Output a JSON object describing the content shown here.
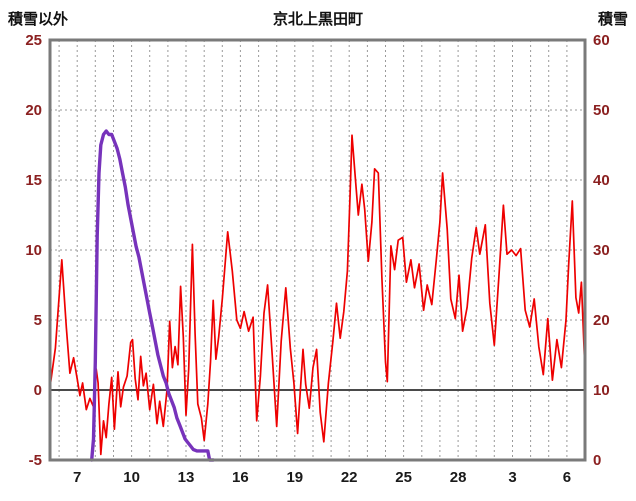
{
  "title": "京北上黒田町",
  "left_axis_title": "積雪以外",
  "right_axis_title": "積雪",
  "colors": {
    "red_series": "#ee0000",
    "purple_series": "#7733bb",
    "grid": "#9a9a9a",
    "frame": "#7a7a7a",
    "zero_line": "#4a4a4a",
    "y_tick_label": "#8b2020",
    "x_tick_label": "#1a1a1a",
    "title_color": "#111111"
  },
  "chart_data": {
    "type": "line",
    "title": "京北上黒田町",
    "x_domain": [
      5.5,
      35.0
    ],
    "x_ticks": [
      {
        "day": 7,
        "label": "7"
      },
      {
        "day": 10,
        "label": "10"
      },
      {
        "day": 13,
        "label": "13"
      },
      {
        "day": 16,
        "label": "16"
      },
      {
        "day": 19,
        "label": "19"
      },
      {
        "day": 22,
        "label": "22"
      },
      {
        "day": 25,
        "label": "25"
      },
      {
        "day": 28,
        "label": "28"
      },
      {
        "day": 31,
        "label": "3"
      },
      {
        "day": 34,
        "label": "6"
      }
    ],
    "grid": {
      "vertical_every_day": 1,
      "style": "dashed"
    },
    "left_axis": {
      "label": "積雪以外",
      "min": -5,
      "max": 25,
      "ticks": [
        -5,
        0,
        5,
        10,
        15,
        20,
        25
      ]
    },
    "right_axis": {
      "label": "積雪",
      "min": 0,
      "max": 60,
      "ticks": [
        0,
        10,
        20,
        30,
        40,
        50,
        60
      ]
    },
    "series": [
      {
        "name": "積雪以外",
        "axis": "left",
        "color": "#ee0000",
        "width": 1.7,
        "points": [
          [
            5.5,
            0.2
          ],
          [
            5.8,
            3.0
          ],
          [
            6.15,
            9.3
          ],
          [
            6.4,
            4.5
          ],
          [
            6.6,
            1.2
          ],
          [
            6.8,
            2.3
          ],
          [
            7.0,
            0.8
          ],
          [
            7.15,
            -0.4
          ],
          [
            7.3,
            0.5
          ],
          [
            7.5,
            -1.4
          ],
          [
            7.7,
            -0.6
          ],
          [
            7.9,
            -1.2
          ],
          [
            8.05,
            1.5
          ],
          [
            8.15,
            0.5
          ],
          [
            8.3,
            -4.6
          ],
          [
            8.45,
            -2.2
          ],
          [
            8.6,
            -3.4
          ],
          [
            8.75,
            -1.0
          ],
          [
            8.9,
            0.9
          ],
          [
            9.05,
            -2.8
          ],
          [
            9.25,
            1.3
          ],
          [
            9.4,
            -1.2
          ],
          [
            9.55,
            0.2
          ],
          [
            9.75,
            1.0
          ],
          [
            9.95,
            3.4
          ],
          [
            10.05,
            3.6
          ],
          [
            10.2,
            0.8
          ],
          [
            10.35,
            -0.7
          ],
          [
            10.5,
            2.4
          ],
          [
            10.65,
            0.3
          ],
          [
            10.8,
            1.2
          ],
          [
            11.0,
            -1.4
          ],
          [
            11.2,
            0.4
          ],
          [
            11.4,
            -2.4
          ],
          [
            11.55,
            -0.8
          ],
          [
            11.75,
            -2.6
          ],
          [
            11.95,
            0.0
          ],
          [
            12.1,
            4.9
          ],
          [
            12.25,
            1.6
          ],
          [
            12.4,
            3.1
          ],
          [
            12.55,
            1.8
          ],
          [
            12.7,
            7.4
          ],
          [
            12.85,
            3.8
          ],
          [
            13.0,
            -1.8
          ],
          [
            13.15,
            1.5
          ],
          [
            13.35,
            10.4
          ],
          [
            13.5,
            4.0
          ],
          [
            13.65,
            -1.0
          ],
          [
            13.85,
            -2.0
          ],
          [
            14.0,
            -3.6
          ],
          [
            14.2,
            -1.0
          ],
          [
            14.35,
            2.0
          ],
          [
            14.5,
            6.4
          ],
          [
            14.65,
            2.2
          ],
          [
            14.8,
            3.8
          ],
          [
            15.0,
            6.5
          ],
          [
            15.3,
            11.3
          ],
          [
            15.55,
            8.5
          ],
          [
            15.8,
            5.0
          ],
          [
            16.0,
            4.4
          ],
          [
            16.2,
            5.6
          ],
          [
            16.45,
            4.2
          ],
          [
            16.7,
            5.2
          ],
          [
            16.9,
            -2.2
          ],
          [
            17.1,
            1.0
          ],
          [
            17.3,
            5.5
          ],
          [
            17.5,
            7.5
          ],
          [
            17.75,
            2.5
          ],
          [
            18.0,
            -2.6
          ],
          [
            18.25,
            3.5
          ],
          [
            18.5,
            7.3
          ],
          [
            18.75,
            3.0
          ],
          [
            18.95,
            0.5
          ],
          [
            19.15,
            -3.1
          ],
          [
            19.45,
            2.9
          ],
          [
            19.6,
            0.4
          ],
          [
            19.8,
            -1.3
          ],
          [
            20.0,
            1.6
          ],
          [
            20.2,
            2.9
          ],
          [
            20.4,
            -1.6
          ],
          [
            20.6,
            -3.7
          ],
          [
            20.85,
            0.5
          ],
          [
            21.1,
            3.5
          ],
          [
            21.3,
            6.2
          ],
          [
            21.5,
            3.7
          ],
          [
            21.7,
            5.6
          ],
          [
            21.9,
            8.5
          ],
          [
            22.05,
            14.0
          ],
          [
            22.15,
            18.2
          ],
          [
            22.35,
            14.9
          ],
          [
            22.5,
            12.5
          ],
          [
            22.7,
            14.7
          ],
          [
            22.85,
            12.9
          ],
          [
            23.05,
            9.2
          ],
          [
            23.25,
            12.0
          ],
          [
            23.4,
            15.8
          ],
          [
            23.6,
            15.5
          ],
          [
            23.8,
            8.0
          ],
          [
            24.0,
            2.0
          ],
          [
            24.1,
            0.6
          ],
          [
            24.3,
            10.3
          ],
          [
            24.5,
            8.6
          ],
          [
            24.7,
            10.7
          ],
          [
            24.95,
            10.9
          ],
          [
            25.15,
            7.7
          ],
          [
            25.4,
            9.3
          ],
          [
            25.6,
            7.3
          ],
          [
            25.85,
            9.0
          ],
          [
            26.1,
            5.7
          ],
          [
            26.3,
            7.5
          ],
          [
            26.55,
            6.1
          ],
          [
            26.8,
            9.3
          ],
          [
            27.0,
            12.0
          ],
          [
            27.15,
            15.5
          ],
          [
            27.4,
            11.5
          ],
          [
            27.6,
            6.5
          ],
          [
            27.85,
            5.1
          ],
          [
            28.05,
            8.2
          ],
          [
            28.25,
            4.2
          ],
          [
            28.5,
            5.9
          ],
          [
            28.75,
            9.4
          ],
          [
            29.0,
            11.6
          ],
          [
            29.2,
            9.7
          ],
          [
            29.5,
            11.8
          ],
          [
            29.75,
            6.2
          ],
          [
            30.0,
            3.2
          ],
          [
            30.25,
            8.1
          ],
          [
            30.5,
            13.2
          ],
          [
            30.7,
            9.7
          ],
          [
            30.95,
            10.0
          ],
          [
            31.2,
            9.6
          ],
          [
            31.45,
            10.1
          ],
          [
            31.7,
            5.7
          ],
          [
            31.95,
            4.5
          ],
          [
            32.2,
            6.5
          ],
          [
            32.45,
            3.1
          ],
          [
            32.7,
            1.1
          ],
          [
            32.95,
            5.1
          ],
          [
            33.2,
            0.7
          ],
          [
            33.45,
            3.6
          ],
          [
            33.7,
            1.6
          ],
          [
            33.95,
            5.0
          ],
          [
            34.1,
            9.0
          ],
          [
            34.3,
            13.5
          ],
          [
            34.5,
            6.6
          ],
          [
            34.65,
            5.5
          ],
          [
            34.8,
            7.7
          ],
          [
            35.0,
            1.3
          ]
        ]
      },
      {
        "name": "積雪",
        "axis": "right",
        "color": "#7733bb",
        "width": 3.4,
        "points": [
          [
            7.8,
            0
          ],
          [
            7.9,
            3
          ],
          [
            8.0,
            14
          ],
          [
            8.1,
            32
          ],
          [
            8.2,
            41
          ],
          [
            8.3,
            45
          ],
          [
            8.45,
            46.5
          ],
          [
            8.6,
            47
          ],
          [
            8.75,
            46.5
          ],
          [
            8.9,
            46.5
          ],
          [
            9.05,
            45.5
          ],
          [
            9.2,
            44.5
          ],
          [
            9.35,
            43
          ],
          [
            9.5,
            41
          ],
          [
            9.65,
            39
          ],
          [
            9.8,
            36.5
          ],
          [
            9.95,
            34.5
          ],
          [
            10.1,
            32.5
          ],
          [
            10.25,
            30.5
          ],
          [
            10.4,
            29
          ],
          [
            10.55,
            27
          ],
          [
            10.7,
            25
          ],
          [
            10.85,
            23
          ],
          [
            11.0,
            21
          ],
          [
            11.15,
            19
          ],
          [
            11.3,
            17
          ],
          [
            11.45,
            15
          ],
          [
            11.6,
            13.5
          ],
          [
            11.75,
            12
          ],
          [
            11.9,
            11
          ],
          [
            12.05,
            9.5
          ],
          [
            12.2,
            8.5
          ],
          [
            12.35,
            7.5
          ],
          [
            12.5,
            6
          ],
          [
            12.65,
            5
          ],
          [
            12.8,
            4
          ],
          [
            12.95,
            3
          ],
          [
            13.1,
            2.5
          ],
          [
            13.25,
            2
          ],
          [
            13.4,
            1.5
          ],
          [
            13.6,
            1.3
          ],
          [
            13.8,
            1.3
          ],
          [
            14.0,
            1.3
          ],
          [
            14.2,
            1.3
          ],
          [
            14.3,
            0
          ],
          [
            14.5,
            0
          ]
        ]
      }
    ]
  }
}
